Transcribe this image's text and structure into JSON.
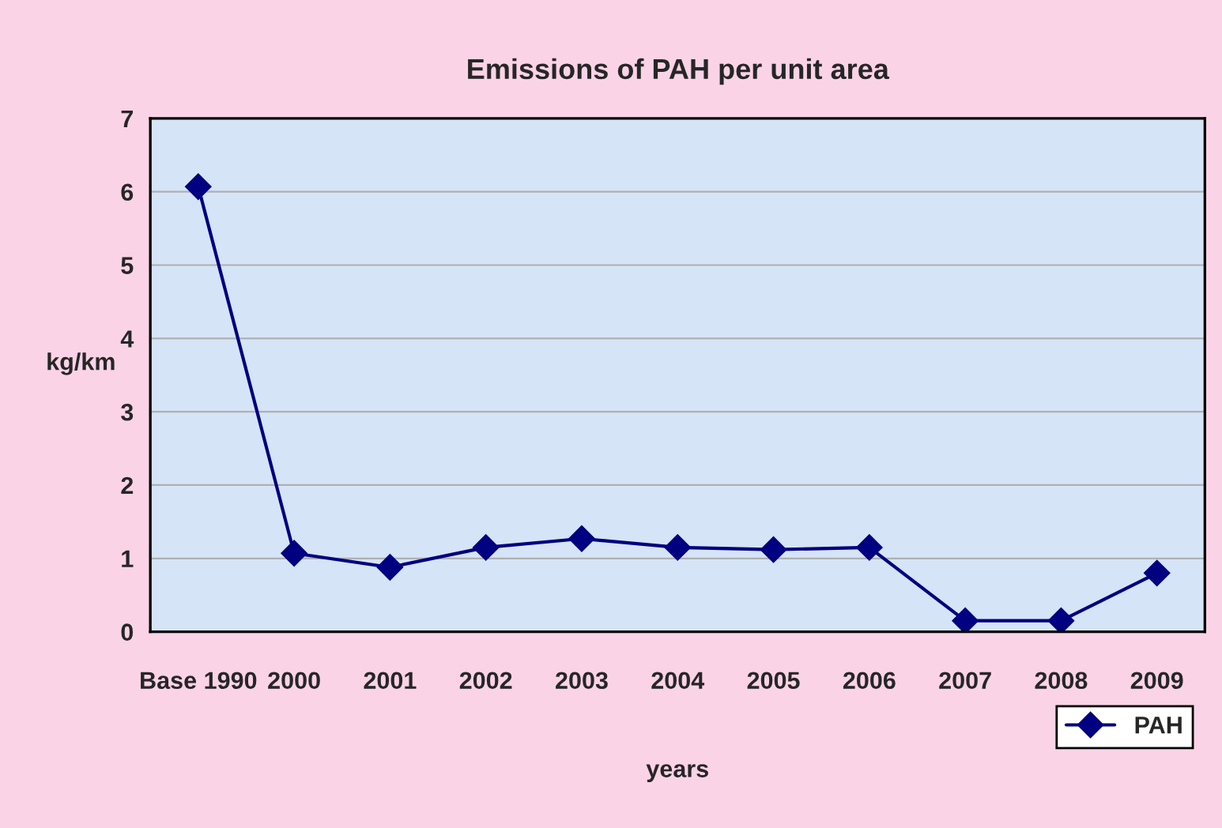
{
  "chart_data": {
    "type": "line",
    "title": "Emissions of PAH per unit area",
    "xlabel": "years",
    "ylabel": "kg/km",
    "categories": [
      "Base 1990",
      "2000",
      "2001",
      "2002",
      "2003",
      "2004",
      "2005",
      "2006",
      "2007",
      "2008",
      "2009"
    ],
    "series": [
      {
        "name": "PAH",
        "color": "#000080",
        "values": [
          6.07,
          1.07,
          0.88,
          1.15,
          1.27,
          1.15,
          1.12,
          1.15,
          0.15,
          0.15,
          0.8
        ]
      }
    ],
    "ylim": [
      0,
      7
    ],
    "yticks": [
      0,
      1,
      2,
      3,
      4,
      5,
      6,
      7
    ],
    "grid": "y",
    "legend": "bottom right",
    "marker": "diamond",
    "line_style": "solid"
  }
}
